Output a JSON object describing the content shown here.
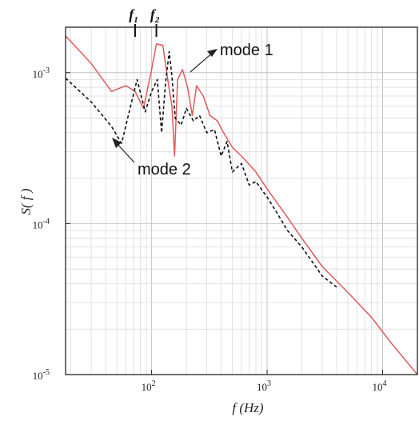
{
  "chart_data": {
    "type": "line",
    "title": "",
    "xlabel": "f (Hz)",
    "ylabel": "S( f )",
    "x_scale": "log",
    "y_scale": "log",
    "xlim": [
      18,
      20000
    ],
    "ylim": [
      1e-05,
      0.002
    ],
    "grid": true,
    "x_ticks": [
      {
        "value": 100,
        "base": "10",
        "exp": "2"
      },
      {
        "value": 1000,
        "base": "10",
        "exp": "3"
      },
      {
        "value": 10000,
        "base": "10",
        "exp": "4"
      }
    ],
    "y_ticks": [
      {
        "value": 1e-05,
        "base": "10",
        "exp": "-5"
      },
      {
        "value": 0.0001,
        "base": "10",
        "exp": "-4"
      },
      {
        "value": 0.001,
        "base": "10",
        "exp": "-3"
      }
    ],
    "series": [
      {
        "name": "mode 1",
        "color": "#e05a5a",
        "style": "solid",
        "points": [
          [
            18,
            0.00175
          ],
          [
            30,
            0.00115
          ],
          [
            45,
            0.00075
          ],
          [
            60,
            0.00082
          ],
          [
            72,
            0.00075
          ],
          [
            85,
            0.00058
          ],
          [
            100,
            0.00105
          ],
          [
            110,
            0.00155
          ],
          [
            125,
            0.00152
          ],
          [
            138,
            0.0009
          ],
          [
            150,
            0.0006
          ],
          [
            158,
            0.00028
          ],
          [
            168,
            0.0009
          ],
          [
            185,
            0.00105
          ],
          [
            205,
            0.0008
          ],
          [
            225,
            0.00052
          ],
          [
            245,
            0.00082
          ],
          [
            280,
            0.0007
          ],
          [
            320,
            0.00052
          ],
          [
            370,
            0.00048
          ],
          [
            420,
            0.0004
          ],
          [
            500,
            0.00032
          ],
          [
            600,
            0.00028
          ],
          [
            800,
            0.00022
          ],
          [
            1000,
            0.00017
          ],
          [
            1500,
            0.00011
          ],
          [
            2000,
            8e-05
          ],
          [
            3000,
            5.2e-05
          ],
          [
            5000,
            3.5e-05
          ],
          [
            8000,
            2.4e-05
          ],
          [
            12000,
            1.6e-05
          ],
          [
            20000,
            1e-05
          ]
        ]
      },
      {
        "name": "mode 2",
        "color": "#111111",
        "style": "dashed",
        "points": [
          [
            18,
            0.00092
          ],
          [
            30,
            0.00064
          ],
          [
            45,
            0.00044
          ],
          [
            55,
            0.00034
          ],
          [
            65,
            0.00058
          ],
          [
            75,
            0.0009
          ],
          [
            88,
            0.00055
          ],
          [
            100,
            0.00075
          ],
          [
            112,
            0.0009
          ],
          [
            122,
            0.0004
          ],
          [
            132,
            0.00085
          ],
          [
            142,
            0.00138
          ],
          [
            150,
            0.00095
          ],
          [
            160,
            0.0005
          ],
          [
            180,
            0.00045
          ],
          [
            200,
            0.00058
          ],
          [
            230,
            0.00048
          ],
          [
            260,
            0.00052
          ],
          [
            300,
            0.0004
          ],
          [
            350,
            0.00042
          ],
          [
            400,
            0.00028
          ],
          [
            450,
            0.00035
          ],
          [
            500,
            0.00022
          ],
          [
            600,
            0.00025
          ],
          [
            700,
            0.00018
          ],
          [
            800,
            0.00019
          ],
          [
            1000,
            0.00015
          ],
          [
            1200,
            0.00012
          ],
          [
            1500,
            9e-05
          ],
          [
            2000,
            7e-05
          ],
          [
            3000,
            4.5e-05
          ],
          [
            4000,
            3.8e-05
          ]
        ]
      }
    ],
    "annotations": [
      {
        "text": "mode 1",
        "series": "mode 1"
      },
      {
        "text": "mode 2",
        "series": "mode 2"
      }
    ],
    "frequency_markers": [
      {
        "base": "f",
        "sub": "1",
        "x": 72
      },
      {
        "base": "f",
        "sub": "2",
        "x": 110
      }
    ]
  }
}
